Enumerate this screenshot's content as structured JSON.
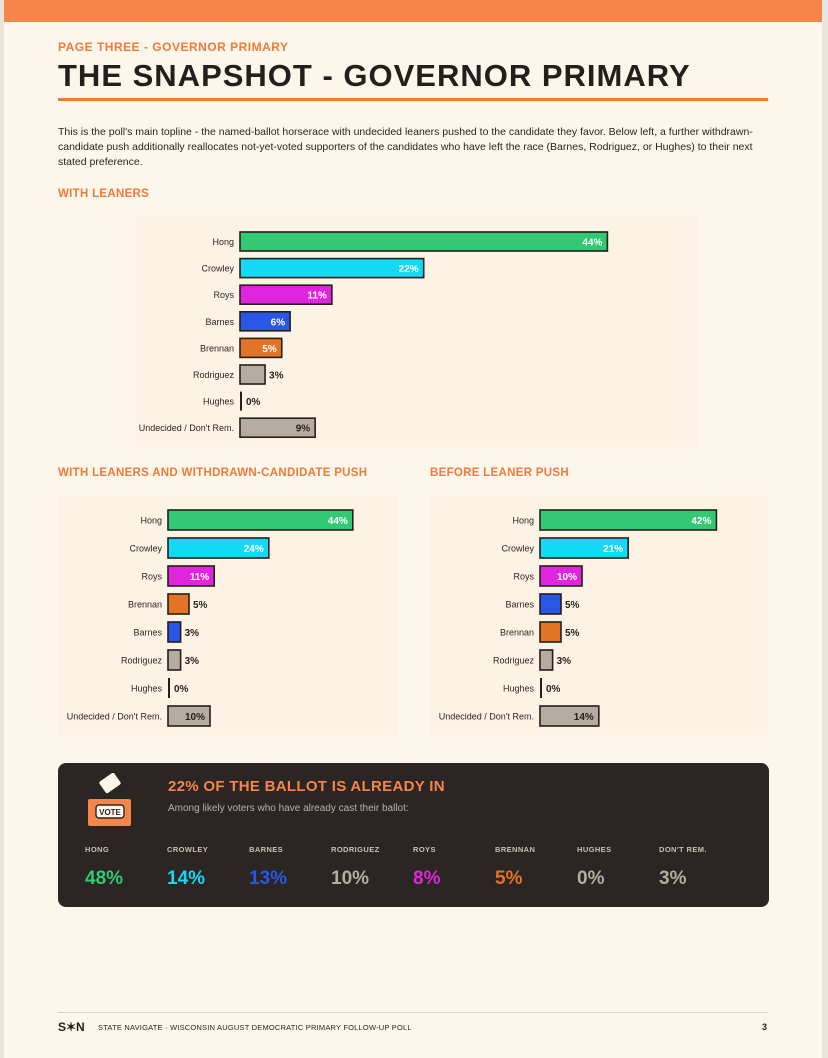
{
  "header": {
    "kicker": "PAGE THREE  -  GOVERNOR PRIMARY",
    "title": "THE SNAPSHOT  -  GOVERNOR PRIMARY",
    "intro": "This is the poll's main topline - the named-ballot horserace with undecided leaners pushed to the candidate they favor. Below left, a further withdrawn-candidate push additionally reallocates not-yet-voted supporters of the candidates who have left the race (Barnes, Rodriguez, or Hughes) to their next stated preference."
  },
  "colors": {
    "Hong": "#33c873",
    "Crowley": "#13d9f4",
    "Roys": "#e025de",
    "Barnes": "#2a56e6",
    "Brennan": "#e37426",
    "Rodriguez": "#b5aca0",
    "Hughes": "#2a2522",
    "Undecided / Don't Rem.": "#b5aca0",
    "accent": "#f07a3b"
  },
  "chart_data": [
    {
      "type": "bar",
      "title": "WITH LEANERS",
      "categories": [
        "Hong",
        "Crowley",
        "Roys",
        "Barnes",
        "Brennan",
        "Rodriguez",
        "Hughes",
        "Undecided / Don't Rem."
      ],
      "values": [
        44,
        22,
        11,
        6,
        5,
        3,
        0,
        9
      ],
      "labels": [
        "44%",
        "22%",
        "11%",
        "6%",
        "5%",
        "3%",
        "0%",
        "9%"
      ],
      "unit": "%"
    },
    {
      "type": "bar",
      "title": "WITH LEANERS AND WITHDRAWN-CANDIDATE PUSH",
      "categories": [
        "Hong",
        "Crowley",
        "Roys",
        "Brennan",
        "Barnes",
        "Rodriguez",
        "Hughes",
        "Undecided / Don't Rem."
      ],
      "values": [
        44,
        24,
        11,
        5,
        3,
        3,
        0,
        10
      ],
      "labels": [
        "44%",
        "24%",
        "11%",
        "5%",
        "3%",
        "3%",
        "0%",
        "10%"
      ],
      "unit": "%"
    },
    {
      "type": "bar",
      "title": "BEFORE LEANER PUSH",
      "categories": [
        "Hong",
        "Crowley",
        "Roys",
        "Barnes",
        "Brennan",
        "Rodriguez",
        "Hughes",
        "Undecided / Don't Rem."
      ],
      "values": [
        42,
        21,
        10,
        5,
        5,
        3,
        0,
        14
      ],
      "labels": [
        "42%",
        "21%",
        "10%",
        "5%",
        "5%",
        "3%",
        "0%",
        "14%"
      ],
      "unit": "%"
    }
  ],
  "early_vote": {
    "icon_label": "VOTE",
    "title": "22% OF THE BALLOT IS ALREADY IN",
    "subtitle": "Among likely voters who have already cast their ballot:",
    "stats": [
      {
        "label": "HONG",
        "value": "48%",
        "color": "#33c873"
      },
      {
        "label": "CROWLEY",
        "value": "14%",
        "color": "#13d9f4"
      },
      {
        "label": "BARNES",
        "value": "13%",
        "color": "#2a56e6"
      },
      {
        "label": "RODRIGUEZ",
        "value": "10%",
        "color": "#b5aca0"
      },
      {
        "label": "ROYS",
        "value": "8%",
        "color": "#e025de"
      },
      {
        "label": "BRENNAN",
        "value": "5%",
        "color": "#e37426"
      },
      {
        "label": "HUGHES",
        "value": "0%",
        "color": "#b5aca0"
      },
      {
        "label": "DON'T REM.",
        "value": "3%",
        "color": "#b5aca0"
      }
    ]
  },
  "footer": {
    "logo": "S✶N",
    "text": "STATE NAVIGATE  ·  WISCONSIN AUGUST DEMOCRATIC PRIMARY FOLLOW-UP POLL",
    "page": "3"
  }
}
